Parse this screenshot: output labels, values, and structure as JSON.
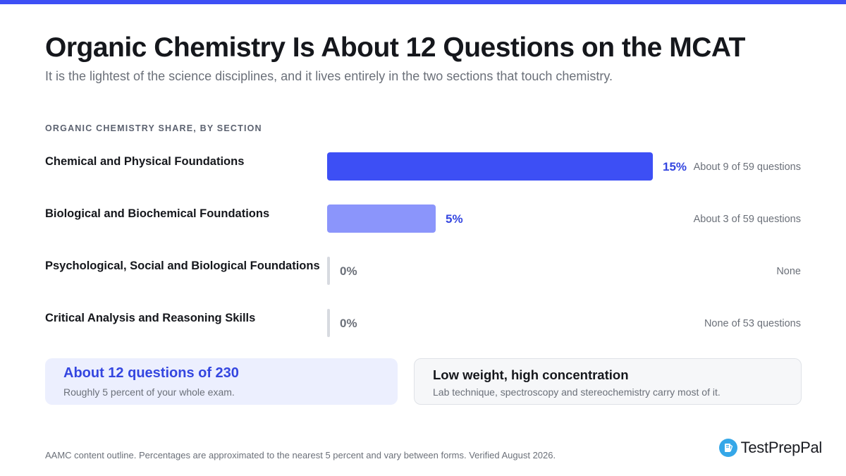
{
  "header": {
    "title": "Organic Chemistry Is About 12 Questions on the MCAT",
    "subtitle": "It is the lightest of the science disciplines, and it lives entirely in the two sections that touch chemistry."
  },
  "chart_data": {
    "type": "bar",
    "orientation": "horizontal",
    "title": "ORGANIC CHEMISTRY SHARE, BY SECTION",
    "categories": [
      "Chemical and Physical Foundations",
      "Biological and Biochemical Foundations",
      "Psychological, Social and Biological Foundations",
      "Critical Analysis and Reasoning Skills"
    ],
    "values": [
      15,
      5,
      0,
      0
    ],
    "value_labels": [
      "15%",
      "5%",
      "0%",
      "0%"
    ],
    "notes": [
      "About 9 of 59 questions",
      "About 3 of 59 questions",
      "None",
      "None of 53 questions"
    ],
    "xlim": [
      0,
      15
    ],
    "grid": false,
    "bar_colors": [
      "#3d4ff5",
      "#8b95fb",
      "#d7dae0",
      "#d7dae0"
    ],
    "label_colors": [
      "#3446e0",
      "#3446e0",
      "#6b7079",
      "#6b7079"
    ]
  },
  "cards": {
    "summary": {
      "title": "About 12 questions of 230",
      "subtitle": "Roughly 5 percent of your whole exam."
    },
    "insight": {
      "title": "Low weight, high concentration",
      "subtitle": "Lab technique, spectroscopy and stereochemistry carry most of it."
    }
  },
  "footer": {
    "note": "AAMC content outline. Percentages are approximated to the nearest 5 percent and vary between forms. Verified August 2026.",
    "brand": "TestPrepPal",
    "brand_icon": "book-icon"
  },
  "colors": {
    "accent": "#3d4ff5",
    "accent_light": "#8b95fb",
    "brand_icon": "#35a7e8"
  }
}
